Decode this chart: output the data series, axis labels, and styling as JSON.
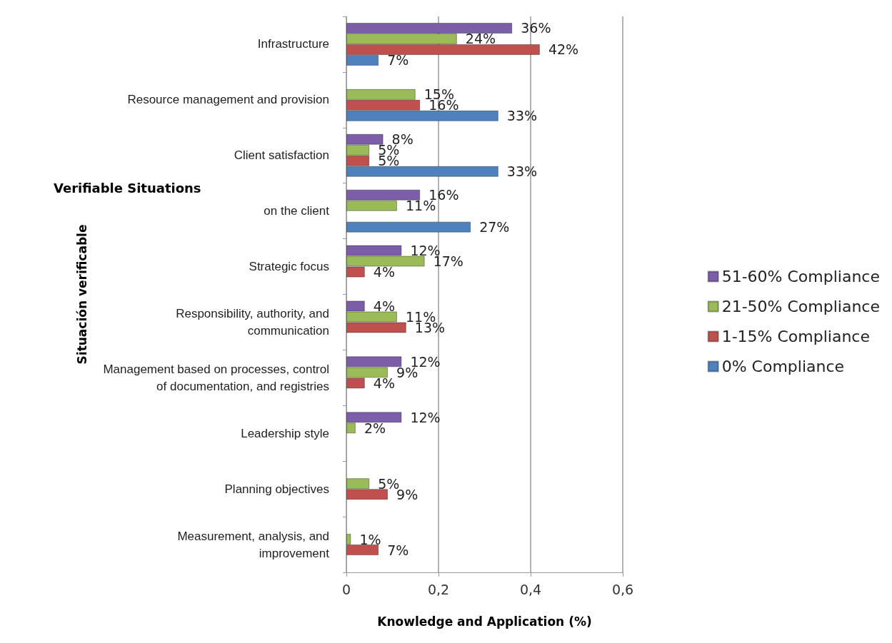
{
  "chart_data": {
    "type": "bar",
    "orientation": "horizontal",
    "xlabel": "Knowledge and Application (%)",
    "ylabel": "Situación verificable",
    "annotations": [
      "Verifiable Situations"
    ],
    "categories": [
      "Infrastructure",
      "Resource management and provision",
      "Client satisfaction",
      "on the client",
      "Strategic focus",
      "Responsibility, authority, and\ncommunication",
      "Management based on processes, control\nof documentation, and registries",
      "Leadership style",
      "Planning objectives",
      "Measurement, analysis, and\nimprovement"
    ],
    "series": [
      {
        "name": "51-60% Compliance",
        "color": "#7b5ea7",
        "values": [
          0.36,
          null,
          0.08,
          0.16,
          0.12,
          0.04,
          0.12,
          0.12,
          null,
          null
        ],
        "value_labels": [
          "36%",
          null,
          "8%",
          "16%",
          "12%",
          "4%",
          "12%",
          "12%",
          null,
          null
        ]
      },
      {
        "name": "21-50% Compliance",
        "color": "#9bbb59",
        "values": [
          0.24,
          0.15,
          0.05,
          0.11,
          0.17,
          0.11,
          0.09,
          0.02,
          0.05,
          0.01
        ],
        "value_labels": [
          "24%",
          "15%",
          "5%",
          "11%",
          "17%",
          "11%",
          "9%",
          "2%",
          "5%",
          "1%"
        ]
      },
      {
        "name": "1-15% Compliance",
        "color": "#c0504d",
        "values": [
          0.42,
          0.16,
          0.05,
          null,
          0.04,
          0.13,
          0.04,
          null,
          0.09,
          0.07
        ],
        "value_labels": [
          "42%",
          "16%",
          "5%",
          null,
          "4%",
          "13%",
          "4%",
          null,
          "9%",
          "7%"
        ]
      },
      {
        "name": "0% Compliance",
        "color": "#4f81bd",
        "values": [
          0.07,
          0.33,
          0.33,
          0.27,
          null,
          null,
          null,
          null,
          null,
          null
        ],
        "value_labels": [
          "7%",
          "33%",
          "33%",
          "27%",
          null,
          null,
          null,
          null,
          null,
          null
        ]
      }
    ],
    "xlim": [
      0,
      0.6
    ],
    "xticks": [
      {
        "value": 0,
        "label": "0"
      },
      {
        "value": 0.2,
        "label": "0,2"
      },
      {
        "value": 0.4,
        "label": "0,4"
      },
      {
        "value": 0.6,
        "label": "0,6"
      }
    ],
    "grid": "x",
    "legend": "right"
  }
}
